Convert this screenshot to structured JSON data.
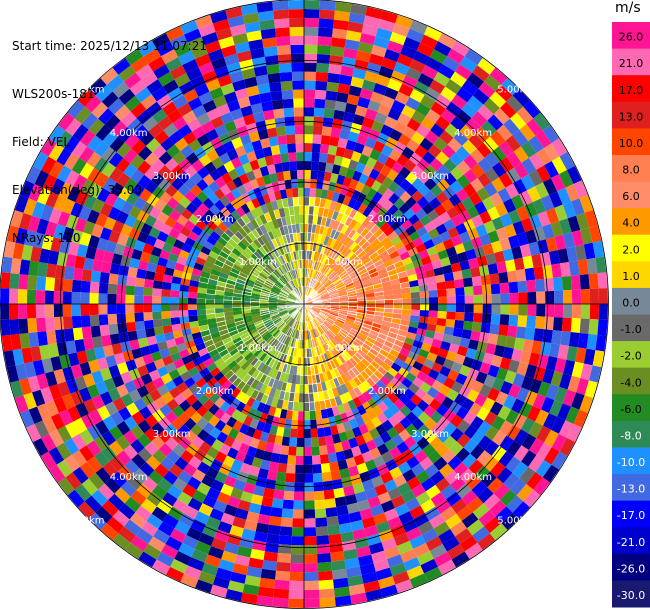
{
  "header": {
    "start_time": "Start time: 2025/12/13 11:07:21",
    "instrument": "WLS200s-181",
    "field": "Field: VEL",
    "elevation": "Elevation(deg): 35.00",
    "nrays": "NRays: 120"
  },
  "chart_data": {
    "type": "heatmap",
    "subtype": "polar-ppi",
    "field": "VEL",
    "unit": "m/s",
    "n_rays": 120,
    "elevation_deg": 35.0,
    "range_rings_km": [
      "1.00km",
      "2.00km",
      "3.00km",
      "4.00km",
      "5.00km"
    ],
    "colorbar": {
      "ticks": [
        "26.0",
        "21.0",
        "17.0",
        "13.0",
        "10.0",
        "8.0",
        "6.0",
        "4.0",
        "2.0",
        "1.0",
        "0.0",
        "-1.0",
        "-2.0",
        "-4.0",
        "-6.0",
        "-8.0",
        "-10.0",
        "-13.0",
        "-17.0",
        "-21.0",
        "-26.0",
        "-30.0"
      ],
      "colors": [
        "#ff1493",
        "#ff69b4",
        "#ff0000",
        "#e0201e",
        "#ff4500",
        "#ff7f50",
        "#ff8c69",
        "#ff9900",
        "#ffff00",
        "#ffd700",
        "#778899",
        "#696969",
        "#9acd32",
        "#6b8e23",
        "#228b22",
        "#2e8b57",
        "#1e90ff",
        "#4169e1",
        "#0000ff",
        "#0000cd",
        "#000080",
        "#191970"
      ]
    }
  }
}
